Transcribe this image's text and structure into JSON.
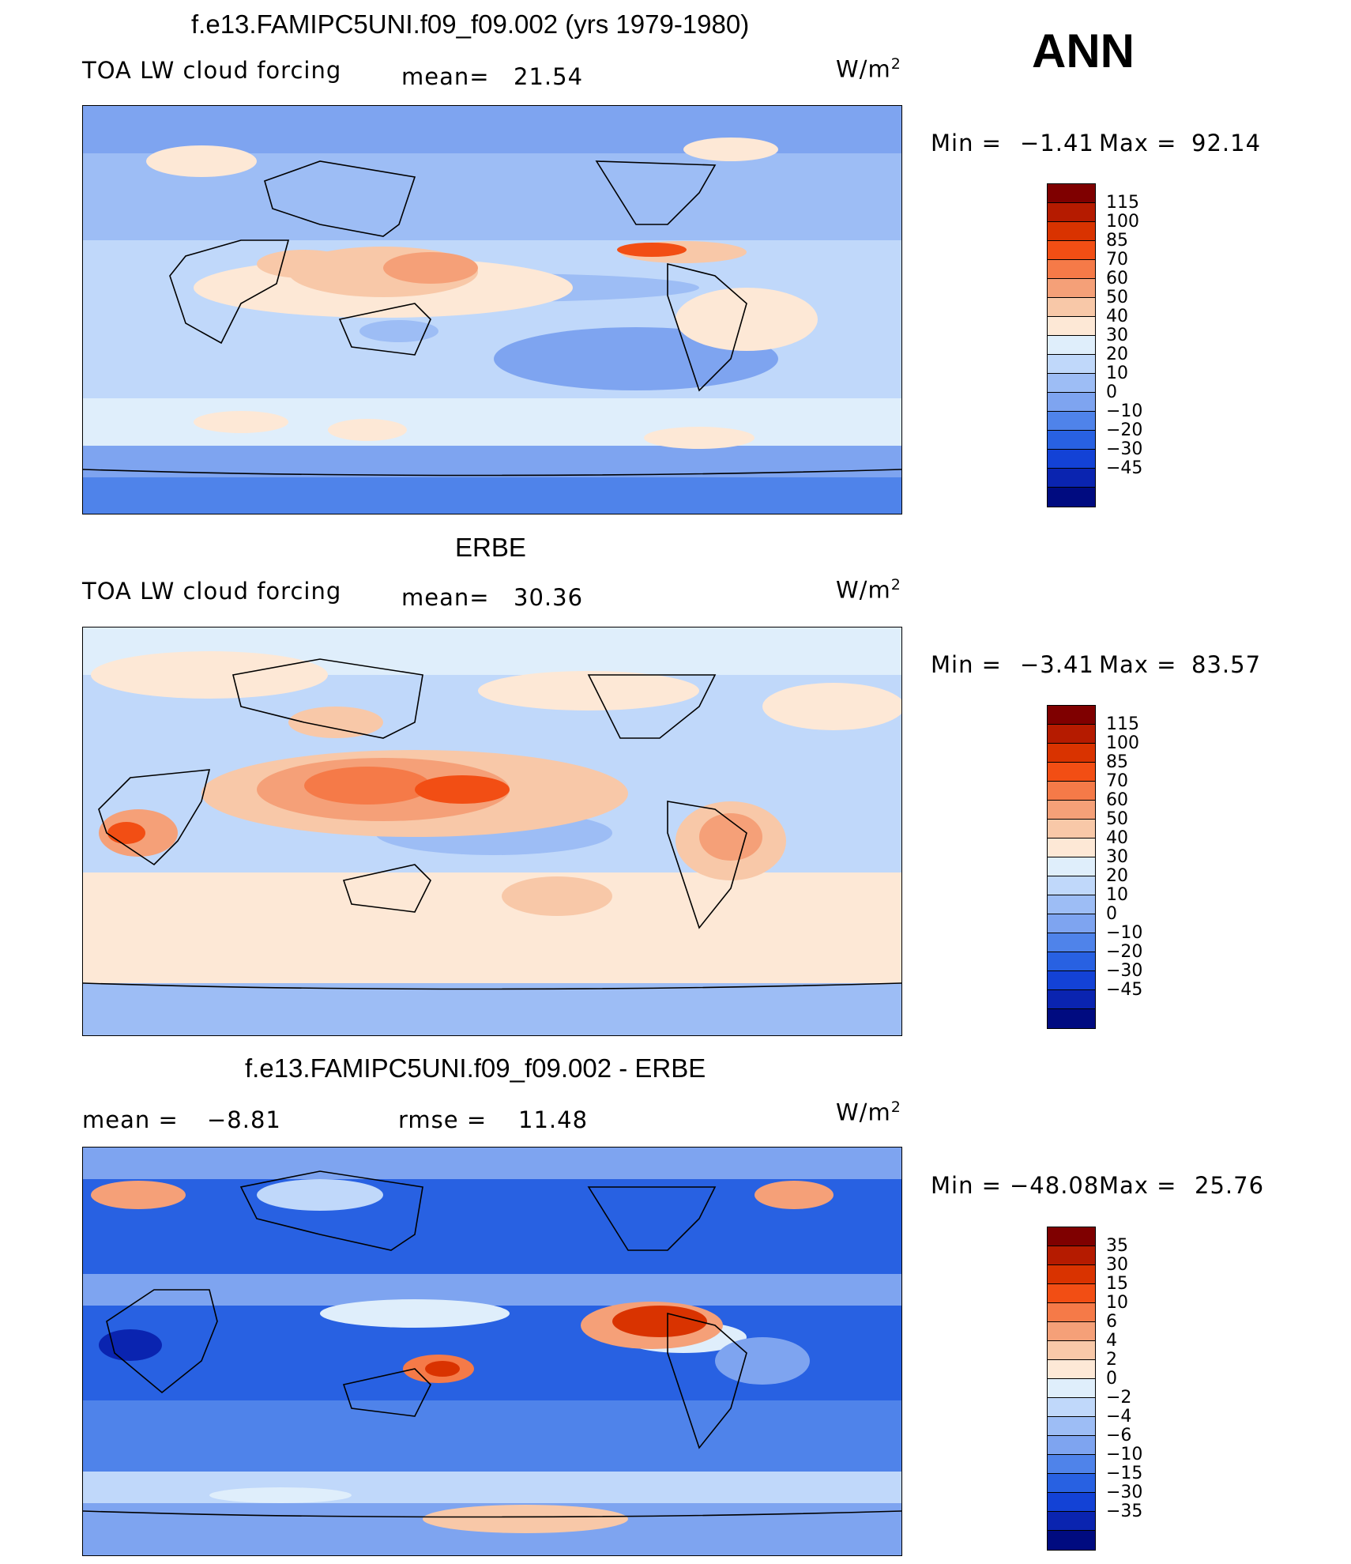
{
  "season": "ANN",
  "units": "W/m",
  "units_exp": "2",
  "panels": [
    {
      "title": "f.e13.FAMIPC5UNI.f09_f09.002 (yrs 1979-1980)",
      "left_label": "TOA LW cloud forcing",
      "stat_label": "mean=",
      "stat_value": "21.54",
      "min_label": "Min =",
      "min_value": "−1.41",
      "max_label": "Max =",
      "max_value": "92.14"
    },
    {
      "title": "ERBE",
      "left_label": "TOA LW cloud forcing",
      "stat_label": "mean=",
      "stat_value": "30.36",
      "min_label": "Min =",
      "min_value": "−3.41",
      "max_label": "Max =",
      "max_value": "83.57"
    },
    {
      "title": "f.e13.FAMIPC5UNI.f09_f09.002 - ERBE",
      "left_label": "mean =",
      "stat_label": "−8.81",
      "rmse_label": "rmse =",
      "rmse_value": "11.48",
      "min_label": "Min =",
      "min_value": "−48.08",
      "max_label": "Max =",
      "max_value": "25.76"
    }
  ],
  "colorbars": [
    {
      "levels": [
        "115",
        "100",
        "85",
        "70",
        "60",
        "50",
        "40",
        "30",
        "20",
        "10",
        "0",
        "−10",
        "−20",
        "−30",
        "−45"
      ],
      "colors": [
        "#7f0000",
        "#b51b00",
        "#d93300",
        "#f24e14",
        "#f57a48",
        "#f5a078",
        "#f8c8a8",
        "#fde8d6",
        "#dfeefb",
        "#c0d8fa",
        "#9dbdf5",
        "#7ea4f0",
        "#4f83ea",
        "#2861e2",
        "#1342d6",
        "#0a24b0",
        "#000b80"
      ]
    },
    {
      "levels": [
        "115",
        "100",
        "85",
        "70",
        "60",
        "50",
        "40",
        "30",
        "20",
        "10",
        "0",
        "−10",
        "−20",
        "−30",
        "−45"
      ],
      "colors": [
        "#7f0000",
        "#b51b00",
        "#d93300",
        "#f24e14",
        "#f57a48",
        "#f5a078",
        "#f8c8a8",
        "#fde8d6",
        "#dfeefb",
        "#c0d8fa",
        "#9dbdf5",
        "#7ea4f0",
        "#4f83ea",
        "#2861e2",
        "#1342d6",
        "#0a24b0",
        "#000b80"
      ]
    },
    {
      "levels": [
        "35",
        "30",
        "15",
        "10",
        "6",
        "4",
        "2",
        "0",
        "−2",
        "−4",
        "−6",
        "−10",
        "−15",
        "−30",
        "−35"
      ],
      "colors": [
        "#7f0000",
        "#b51b00",
        "#d93300",
        "#f24e14",
        "#f57a48",
        "#f5a078",
        "#f8c8a8",
        "#fde8d6",
        "#dfeefb",
        "#c0d8fa",
        "#9dbdf5",
        "#7ea4f0",
        "#4f83ea",
        "#2861e2",
        "#1342d6",
        "#0a24b0",
        "#000b80"
      ]
    }
  ]
}
